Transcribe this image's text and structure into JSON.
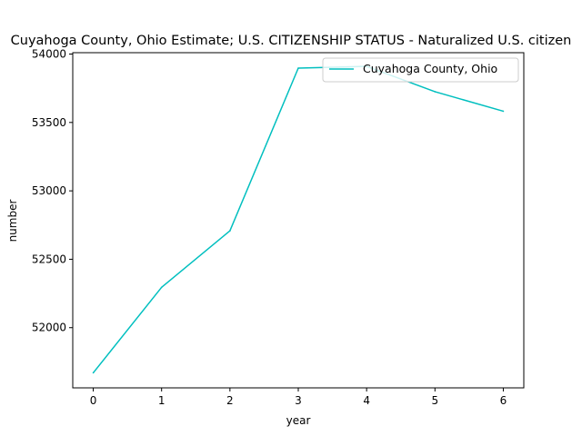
{
  "chart_data": {
    "type": "line",
    "title": "Cuyahoga County, Ohio Estimate; U.S. CITIZENSHIP STATUS - Naturalized U.S. citizen",
    "xlabel": "year",
    "ylabel": "number",
    "x": [
      0,
      1,
      2,
      3,
      4,
      5,
      6
    ],
    "xticks": [
      "0",
      "1",
      "2",
      "3",
      "4",
      "5",
      "6"
    ],
    "yticks": [
      "52000",
      "52500",
      "53000",
      "53500",
      "54000"
    ],
    "xlim": [
      -0.3,
      6.3
    ],
    "ylim": [
      51560,
      54010
    ],
    "grid": false,
    "legend_position": "top-right",
    "series": [
      {
        "name": "Cuyahoga County, Ohio",
        "color": "#00bfbf",
        "values": [
          51670,
          52295,
          52708,
          53897,
          53910,
          53725,
          53582
        ]
      }
    ]
  }
}
